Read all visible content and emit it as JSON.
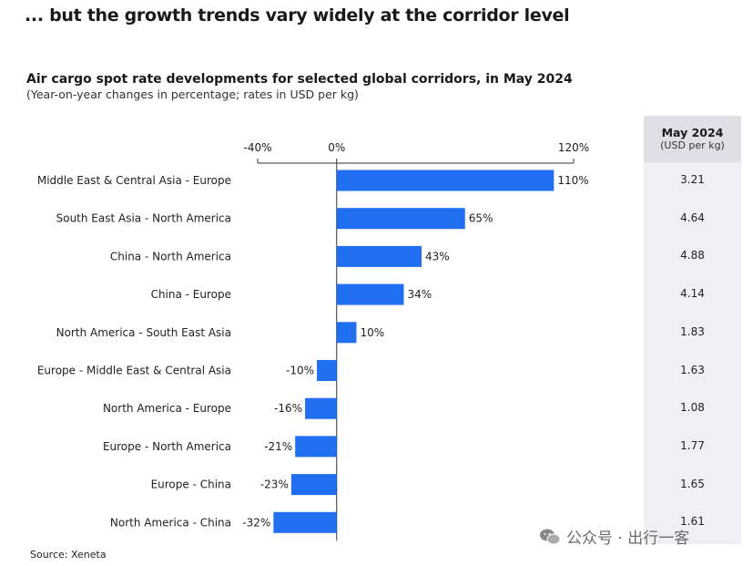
{
  "headline": "... but the growth trends vary widely at the corridor level",
  "source": "Source: Xeneta",
  "watermark": "公众号 · 出行一客",
  "chart_data": {
    "type": "bar",
    "orientation": "horizontal",
    "title": "Air cargo spot rate developments for selected global corridors, in May 2024",
    "subtitle": "(Year-on-year changes in percentage; rates in USD per kg)",
    "xlim": [
      -40,
      120
    ],
    "ticks": [
      {
        "value": -40,
        "label": "-40%"
      },
      {
        "value": 0,
        "label": "0%"
      },
      {
        "value": 120,
        "label": "120%"
      }
    ],
    "bar_color": "#1f6ff0",
    "categories": [
      "Middle East & Central Asia - Europe",
      "South East Asia - North America",
      "China - North America",
      "China - Europe",
      "North America - South East Asia",
      "Europe - Middle East & Central Asia",
      "North America - Europe",
      "Europe - North America",
      "Europe - China",
      "North America - China"
    ],
    "values": [
      110,
      65,
      43,
      34,
      10,
      -10,
      -16,
      -21,
      -23,
      -32
    ],
    "value_labels": [
      "110%",
      "65%",
      "43%",
      "34%",
      "10%",
      "-10%",
      "-16%",
      "-21%",
      "-23%",
      "-32%"
    ],
    "rate_column": {
      "title": "May 2024",
      "unit": "(USD per kg)",
      "values": [
        "3.21",
        "4.64",
        "4.88",
        "4.14",
        "1.83",
        "1.63",
        "1.08",
        "1.77",
        "1.65",
        "1.61"
      ]
    }
  }
}
